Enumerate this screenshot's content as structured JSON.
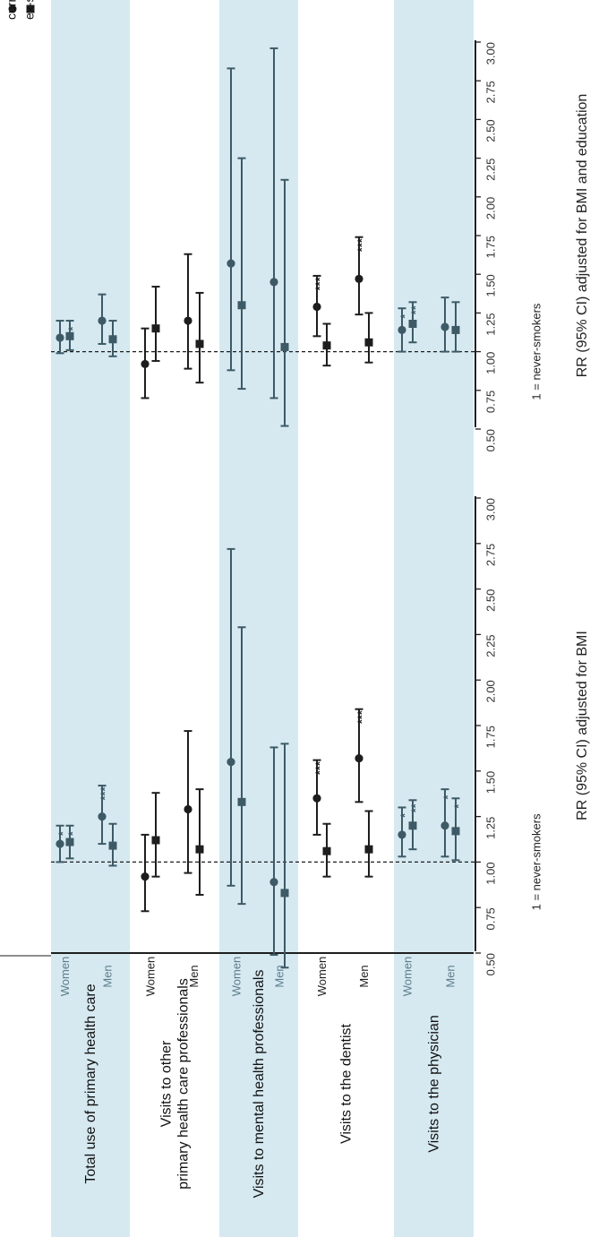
{
  "legend": {
    "current_label": "current smokers",
    "ex_label": "ex-smokers",
    "current_marker": "circle-marker",
    "ex_marker": "square-marker"
  },
  "colors": {
    "band": "#d6e9f1",
    "dark": "#1e1e1e",
    "teal": "#3d5a66"
  },
  "categories": [
    {
      "name": "Total use of primary health care",
      "shaded": true
    },
    {
      "name": "Visits to other\nprimary health care professionals",
      "shaded": false
    },
    {
      "name": "Visits to mental health professionals",
      "shaded": true
    },
    {
      "name": "Visits to the dentist",
      "shaded": false
    },
    {
      "name": "Visits to the physician",
      "shaded": true
    }
  ],
  "sex_labels": [
    "Women",
    "Men"
  ],
  "panels": [
    {
      "xlabel": "RR (95% CI) adjusted for BMI",
      "ref_label": "1 = never-smokers",
      "xlim": [
        0.5,
        3.0
      ],
      "ticks": [
        "0.50",
        "0.75",
        "1.00",
        "1.25",
        "1.50",
        "1.75",
        "2.00",
        "2.25",
        "2.50",
        "2.75",
        "3.00"
      ],
      "rows": [
        {
          "cat": 0,
          "sex": "Women",
          "current": {
            "rr": 1.1,
            "lo": 1.0,
            "hi": 1.2,
            "sig": "*"
          },
          "ex": {
            "rr": 1.11,
            "lo": 1.02,
            "hi": 1.2,
            "sig": "*"
          }
        },
        {
          "cat": 0,
          "sex": "Men",
          "current": {
            "rr": 1.25,
            "lo": 1.1,
            "hi": 1.42,
            "sig": "***"
          },
          "ex": {
            "rr": 1.09,
            "lo": 0.98,
            "hi": 1.21,
            "sig": ""
          }
        },
        {
          "cat": 1,
          "sex": "Women",
          "current": {
            "rr": 0.92,
            "lo": 0.73,
            "hi": 1.15,
            "sig": ""
          },
          "ex": {
            "rr": 1.12,
            "lo": 0.92,
            "hi": 1.38,
            "sig": ""
          }
        },
        {
          "cat": 1,
          "sex": "Men",
          "current": {
            "rr": 1.29,
            "lo": 0.94,
            "hi": 1.72,
            "sig": ""
          },
          "ex": {
            "rr": 1.07,
            "lo": 0.82,
            "hi": 1.4,
            "sig": ""
          }
        },
        {
          "cat": 2,
          "sex": "Women",
          "current": {
            "rr": 1.55,
            "lo": 0.87,
            "hi": 2.72,
            "sig": ""
          },
          "ex": {
            "rr": 1.33,
            "lo": 0.77,
            "hi": 2.29,
            "sig": ""
          }
        },
        {
          "cat": 2,
          "sex": "Men",
          "current": {
            "rr": 0.89,
            "lo": 0.49,
            "hi": 1.63,
            "sig": ""
          },
          "ex": {
            "rr": 0.83,
            "lo": 0.42,
            "hi": 1.65,
            "sig": ""
          }
        },
        {
          "cat": 3,
          "sex": "Women",
          "current": {
            "rr": 1.35,
            "lo": 1.15,
            "hi": 1.56,
            "sig": "***"
          },
          "ex": {
            "rr": 1.06,
            "lo": 0.92,
            "hi": 1.21,
            "sig": ""
          }
        },
        {
          "cat": 3,
          "sex": "Men",
          "current": {
            "rr": 1.57,
            "lo": 1.33,
            "hi": 1.84,
            "sig": "***"
          },
          "ex": {
            "rr": 1.07,
            "lo": 0.92,
            "hi": 1.28,
            "sig": ""
          }
        },
        {
          "cat": 4,
          "sex": "Women",
          "current": {
            "rr": 1.15,
            "lo": 1.03,
            "hi": 1.3,
            "sig": "*"
          },
          "ex": {
            "rr": 1.2,
            "lo": 1.07,
            "hi": 1.34,
            "sig": "**"
          }
        },
        {
          "cat": 4,
          "sex": "Men",
          "current": {
            "rr": 1.2,
            "lo": 1.03,
            "hi": 1.4,
            "sig": "*"
          },
          "ex": {
            "rr": 1.17,
            "lo": 1.01,
            "hi": 1.35,
            "sig": "*"
          }
        }
      ]
    },
    {
      "xlabel": "RR (95% CI) adjusted for BMI and education",
      "ref_label": "1 = never-smokers",
      "xlim": [
        0.5,
        3.0
      ],
      "ticks": [
        "0.50",
        "0.75",
        "1.00",
        "1.25",
        "1.50",
        "1.75",
        "2.00",
        "2.25",
        "2.50",
        "2.75",
        "3.00"
      ],
      "rows": [
        {
          "cat": 0,
          "sex": "Women",
          "current": {
            "rr": 1.09,
            "lo": 0.99,
            "hi": 1.2,
            "sig": ""
          },
          "ex": {
            "rr": 1.1,
            "lo": 1.01,
            "hi": 1.2,
            "sig": "*"
          }
        },
        {
          "cat": 0,
          "sex": "Men",
          "current": {
            "rr": 1.2,
            "lo": 1.05,
            "hi": 1.37,
            "sig": ""
          },
          "ex": {
            "rr": 1.08,
            "lo": 0.97,
            "hi": 1.2,
            "sig": ""
          }
        },
        {
          "cat": 1,
          "sex": "Women",
          "current": {
            "rr": 0.92,
            "lo": 0.7,
            "hi": 1.15,
            "sig": ""
          },
          "ex": {
            "rr": 1.15,
            "lo": 0.94,
            "hi": 1.42,
            "sig": ""
          }
        },
        {
          "cat": 1,
          "sex": "Men",
          "current": {
            "rr": 1.2,
            "lo": 0.89,
            "hi": 1.63,
            "sig": ""
          },
          "ex": {
            "rr": 1.05,
            "lo": 0.8,
            "hi": 1.38,
            "sig": ""
          }
        },
        {
          "cat": 2,
          "sex": "Women",
          "current": {
            "rr": 1.57,
            "lo": 0.88,
            "hi": 2.83,
            "sig": ""
          },
          "ex": {
            "rr": 1.3,
            "lo": 0.76,
            "hi": 2.25,
            "sig": ""
          }
        },
        {
          "cat": 2,
          "sex": "Men",
          "current": {
            "rr": 1.45,
            "lo": 0.7,
            "hi": 2.96,
            "sig": ""
          },
          "ex": {
            "rr": 1.03,
            "lo": 0.52,
            "hi": 2.11,
            "sig": ""
          }
        },
        {
          "cat": 3,
          "sex": "Women",
          "current": {
            "rr": 1.29,
            "lo": 1.1,
            "hi": 1.49,
            "sig": "***"
          },
          "ex": {
            "rr": 1.04,
            "lo": 0.91,
            "hi": 1.18,
            "sig": ""
          }
        },
        {
          "cat": 3,
          "sex": "Men",
          "current": {
            "rr": 1.47,
            "lo": 1.24,
            "hi": 1.74,
            "sig": "***"
          },
          "ex": {
            "rr": 1.06,
            "lo": 0.93,
            "hi": 1.25,
            "sig": ""
          }
        },
        {
          "cat": 4,
          "sex": "Women",
          "current": {
            "rr": 1.14,
            "lo": 1.0,
            "hi": 1.28,
            "sig": "*"
          },
          "ex": {
            "rr": 1.18,
            "lo": 1.06,
            "hi": 1.32,
            "sig": "**"
          }
        },
        {
          "cat": 4,
          "sex": "Men",
          "current": {
            "rr": 1.16,
            "lo": 1.0,
            "hi": 1.35,
            "sig": ""
          },
          "ex": {
            "rr": 1.14,
            "lo": 1.0,
            "hi": 1.32,
            "sig": ""
          }
        }
      ]
    }
  ],
  "chart_data": [
    {
      "type": "scatter",
      "xlabel": "RR (95% CI) adjusted for BMI",
      "xlim": [
        0.5,
        3.0
      ],
      "reference_line": 1.0,
      "categories": [
        "Total use of primary health care",
        "Visits to other primary health care professionals",
        "Visits to mental health professionals",
        "Visits to the dentist",
        "Visits to the physician"
      ],
      "series": [
        {
          "name": "current smokers",
          "women": [
            1.1,
            0.92,
            1.55,
            1.35,
            1.15
          ],
          "men": [
            1.25,
            1.29,
            0.89,
            1.57,
            1.2
          ]
        },
        {
          "name": "ex-smokers",
          "women": [
            1.11,
            1.12,
            1.33,
            1.06,
            1.2
          ],
          "men": [
            1.09,
            1.07,
            0.83,
            1.07,
            1.17
          ]
        }
      ]
    },
    {
      "type": "scatter",
      "xlabel": "RR (95% CI) adjusted for BMI and education",
      "xlim": [
        0.5,
        3.0
      ],
      "reference_line": 1.0,
      "categories": [
        "Total use of primary health care",
        "Visits to other primary health care professionals",
        "Visits to mental health professionals",
        "Visits to the dentist",
        "Visits to the physician"
      ],
      "series": [
        {
          "name": "current smokers",
          "women": [
            1.09,
            0.92,
            1.57,
            1.29,
            1.14
          ],
          "men": [
            1.2,
            1.2,
            1.45,
            1.47,
            1.16
          ]
        },
        {
          "name": "ex-smokers",
          "women": [
            1.1,
            1.15,
            1.3,
            1.04,
            1.18
          ],
          "men": [
            1.08,
            1.05,
            1.03,
            1.06,
            1.14
          ]
        }
      ]
    }
  ]
}
